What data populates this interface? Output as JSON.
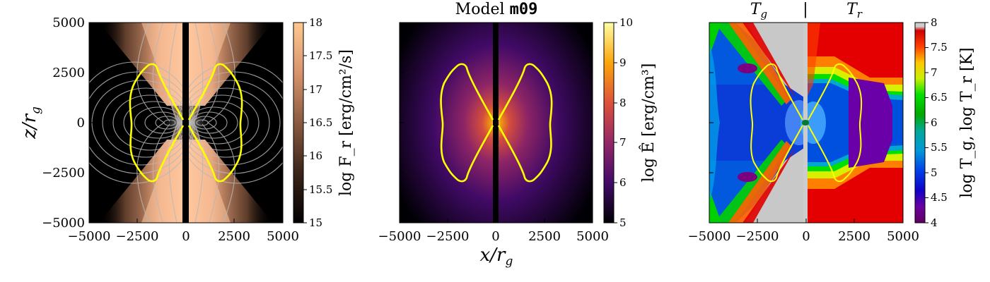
{
  "figure": {
    "title_prefix": "Model ",
    "title_model": "m09",
    "xlabel": "x/r",
    "xlabel_sub": "g",
    "ylabel": "z/r",
    "ylabel_sub": "g"
  },
  "chart_data": [
    {
      "type": "heatmap",
      "panel": "left",
      "quantity": "log F_r",
      "xlim": [
        -5000,
        5000
      ],
      "ylim": [
        -5000,
        5000
      ],
      "xticks": [
        "−5000",
        "−2500",
        "0",
        "2500",
        "5000"
      ],
      "yticks": [
        "5000",
        "2500",
        "0",
        "−2500",
        "−5000"
      ],
      "colorbar": {
        "label": "log F_r [erg/cm²/s]",
        "range": [
          15,
          18
        ],
        "ticks": [
          "18",
          "17.5",
          "17",
          "16.5",
          "16",
          "15.5",
          "15"
        ],
        "colormap": "copper",
        "colors": [
          "#000000",
          "#5a3a26",
          "#a6705a",
          "#e6a07a",
          "#ffc890"
        ]
      },
      "overlay": "field-line contours (grey) and photosphere (yellow)"
    },
    {
      "type": "heatmap",
      "panel": "middle",
      "quantity": "log Ê",
      "xlim": [
        -5000,
        5000
      ],
      "ylim": [
        -5000,
        5000
      ],
      "xticks": [
        "−5000",
        "−2500",
        "0",
        "2500",
        "5000"
      ],
      "colorbar": {
        "label": "log Ê [erg/cm³]",
        "range": [
          5,
          10
        ],
        "ticks": [
          "10",
          "9",
          "8",
          "7",
          "6",
          "5"
        ],
        "colormap": "inferno",
        "colors": [
          "#000004",
          "#420a68",
          "#932667",
          "#dd513a",
          "#fca50a",
          "#fcffa4"
        ]
      },
      "overlay": "photosphere (yellow)"
    },
    {
      "type": "heatmap",
      "panel": "right",
      "quantity": "log T_g, log T_r",
      "left_half_label": "T",
      "left_half_sub": "g",
      "separator": "|",
      "right_half_label": "T",
      "right_half_sub": "r",
      "xlim": [
        -5000,
        5000
      ],
      "ylim": [
        -5000,
        5000
      ],
      "xticks": [
        "−5000",
        "−2500",
        "0",
        "2500",
        "5000"
      ],
      "colorbar": {
        "label": "log T_g, log T_r [K]",
        "range": [
          4,
          8
        ],
        "ticks": [
          "8",
          "7.5",
          "7",
          "6.5",
          "6",
          "5.5",
          "5",
          "4.5",
          "4"
        ],
        "colormap": "nipy_spectral",
        "colors": [
          "#6a006a",
          "#2200a0",
          "#0000e0",
          "#0098d8",
          "#00a8a8",
          "#00b400",
          "#00f000",
          "#c8f000",
          "#ffd800",
          "#ff7000",
          "#e00000",
          "#cccccc"
        ]
      },
      "overlay": "photosphere (yellow)"
    }
  ]
}
